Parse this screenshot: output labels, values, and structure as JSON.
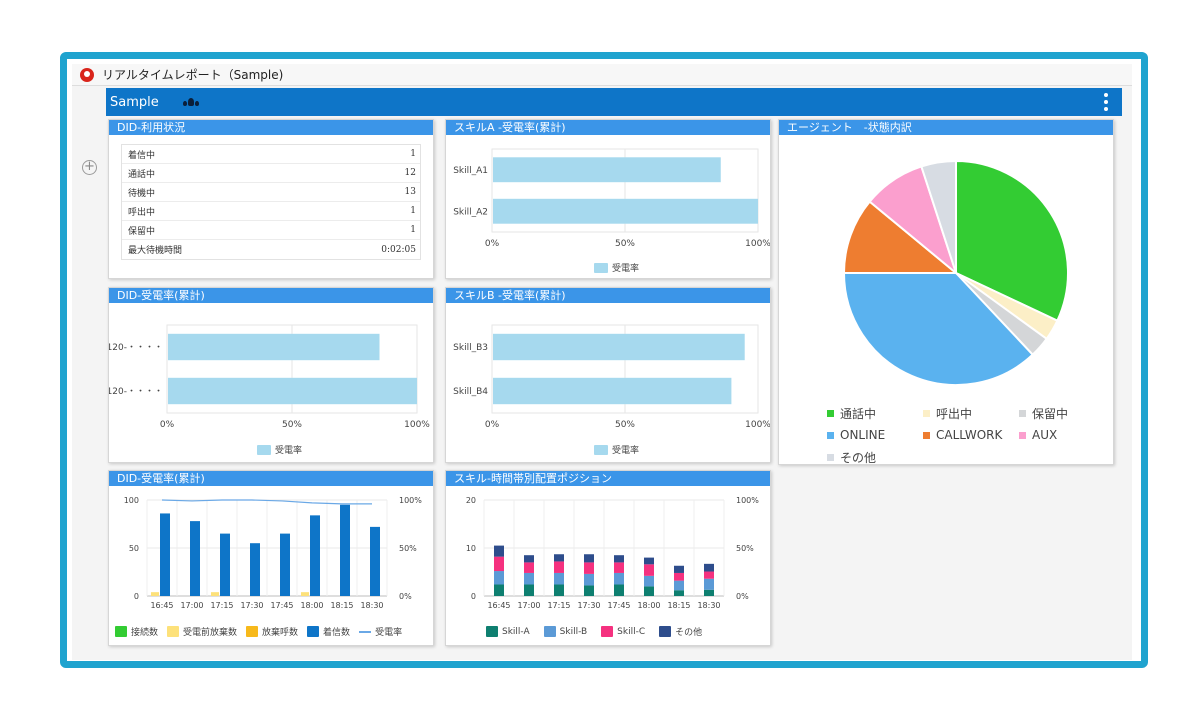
{
  "window": {
    "title": "リアルタイムレポート（Sample)"
  },
  "header": {
    "workspace": "Sample"
  },
  "colors": {
    "header": "#0e75c8",
    "panel_head": "#3b95e8",
    "bar_light": "#a6d9ee",
    "frame": "#1fa3cf"
  },
  "panels": {
    "did_status": {
      "title": "DID-利用状況",
      "rows": [
        {
          "label": "着信中",
          "value": "1"
        },
        {
          "label": "通話中",
          "value": "12"
        },
        {
          "label": "待機中",
          "value": "13"
        },
        {
          "label": "呼出中",
          "value": "1"
        },
        {
          "label": "保留中",
          "value": "1"
        },
        {
          "label": "最大待機時間",
          "value": "0:02:05"
        }
      ]
    },
    "skill_a": {
      "title": "スキルA -受電率(累計)",
      "legend": "受電率"
    },
    "agent_status": {
      "title": "エージェント　-状態内訳"
    },
    "did_rate": {
      "title": "DID-受電率(累計)",
      "legend": "受電率"
    },
    "skill_b": {
      "title": "スキルB -受電率(累計)",
      "legend": "受電率"
    },
    "did_rate_time": {
      "title": "DID-受電率(累計)",
      "legend": [
        "接続数",
        "受電前放棄数",
        "放棄呼数",
        "着信数",
        "受電率"
      ]
    },
    "skill_time": {
      "title": "スキル-時間帯別配置ポジション",
      "legend": [
        "Skill-A",
        "Skill-B",
        "Skill-C",
        "その他"
      ]
    }
  },
  "chart_data": [
    {
      "id": "skill_a",
      "type": "bar",
      "orientation": "horizontal",
      "categories": [
        "Skill_A1",
        "Skill_A2"
      ],
      "series": [
        {
          "name": "受電率",
          "values": [
            86,
            100
          ],
          "color": "#a6d9ee"
        }
      ],
      "xlim": [
        0,
        100
      ],
      "xticks": [
        "0%",
        "50%",
        "100%"
      ],
      "legend": "bottom"
    },
    {
      "id": "did_rate",
      "type": "bar",
      "orientation": "horizontal",
      "categories": [
        "0120-・・・・",
        "0120-・・・・"
      ],
      "series": [
        {
          "name": "受電率",
          "values": [
            85,
            100
          ],
          "color": "#a6d9ee"
        }
      ],
      "xlim": [
        0,
        100
      ],
      "xticks": [
        "0%",
        "50%",
        "100%"
      ],
      "legend": "bottom"
    },
    {
      "id": "skill_b",
      "type": "bar",
      "orientation": "horizontal",
      "categories": [
        "Skill_B3",
        "Skill_B4"
      ],
      "series": [
        {
          "name": "受電率",
          "values": [
            95,
            90
          ],
          "color": "#a6d9ee"
        }
      ],
      "xlim": [
        0,
        100
      ],
      "xticks": [
        "0%",
        "50%",
        "100%"
      ],
      "legend": "bottom"
    },
    {
      "id": "agent_status",
      "type": "pie",
      "slices": [
        {
          "label": "通話中",
          "value": 32,
          "color": "#33cc33"
        },
        {
          "label": "呼出中",
          "value": 3,
          "color": "#fcefc7"
        },
        {
          "label": "保留中",
          "value": 3,
          "color": "#d4d6d8"
        },
        {
          "label": "ONLINE",
          "value": 37,
          "color": "#5ab2ef"
        },
        {
          "label": "CALLWORK",
          "value": 11,
          "color": "#ee7d30"
        },
        {
          "label": "AUX",
          "value": 9,
          "color": "#fb9fce"
        },
        {
          "label": "その他",
          "value": 5,
          "color": "#d7dce3"
        }
      ],
      "legend": "bottom"
    },
    {
      "id": "did_rate_time",
      "type": "bar",
      "categories": [
        "16:45",
        "17:00",
        "17:15",
        "17:30",
        "17:45",
        "18:00",
        "18:15",
        "18:30"
      ],
      "series": [
        {
          "name": "接続数",
          "values": [
            0,
            0,
            0,
            0,
            0,
            0,
            0,
            0
          ],
          "color": "#33cc33"
        },
        {
          "name": "受電前放棄数",
          "values": [
            4,
            0,
            4,
            0,
            0,
            4,
            0,
            0
          ],
          "color": "#fde17a"
        },
        {
          "name": "放棄呼数",
          "values": [
            0,
            0,
            0,
            0,
            0,
            0,
            0,
            0
          ],
          "color": "#f7b91b"
        },
        {
          "name": "着信数",
          "values": [
            86,
            78,
            65,
            55,
            65,
            84,
            95,
            72
          ],
          "color": "#0e75c8"
        },
        {
          "name": "受電率",
          "type": "line",
          "axis": "right",
          "values": [
            100,
            99,
            100,
            100,
            99,
            97,
            96,
            96
          ],
          "color": "#6aa8e6"
        }
      ],
      "ylim": [
        0,
        100
      ],
      "yticks": [
        "0",
        "50",
        "100"
      ],
      "y2ticks": [
        "0%",
        "50%",
        "100%"
      ],
      "legend": "bottom"
    },
    {
      "id": "skill_time",
      "type": "bar",
      "stacked": true,
      "categories": [
        "16:45",
        "17:00",
        "17:15",
        "17:30",
        "17:45",
        "18:00",
        "18:15",
        "18:30"
      ],
      "series": [
        {
          "name": "Skill-A",
          "values": [
            2.4,
            2.4,
            2.4,
            2.2,
            2.4,
            2.0,
            1.2,
            1.3
          ],
          "color": "#0e7f70"
        },
        {
          "name": "Skill-B",
          "values": [
            2.8,
            2.4,
            2.4,
            2.4,
            2.4,
            2.2,
            2.0,
            2.3
          ],
          "color": "#5b9ad6"
        },
        {
          "name": "Skill-C",
          "values": [
            3.0,
            2.2,
            2.4,
            2.4,
            2.2,
            2.4,
            1.6,
            1.5
          ],
          "color": "#f5317f"
        },
        {
          "name": "その他",
          "values": [
            2.3,
            1.5,
            1.5,
            1.7,
            1.5,
            1.4,
            1.5,
            1.6
          ],
          "color": "#2e4d8c"
        }
      ],
      "ylim": [
        0,
        20
      ],
      "yticks": [
        "0",
        "10",
        "20"
      ],
      "y2ticks": [
        "0%",
        "50%",
        "100%"
      ],
      "legend": "bottom"
    }
  ]
}
